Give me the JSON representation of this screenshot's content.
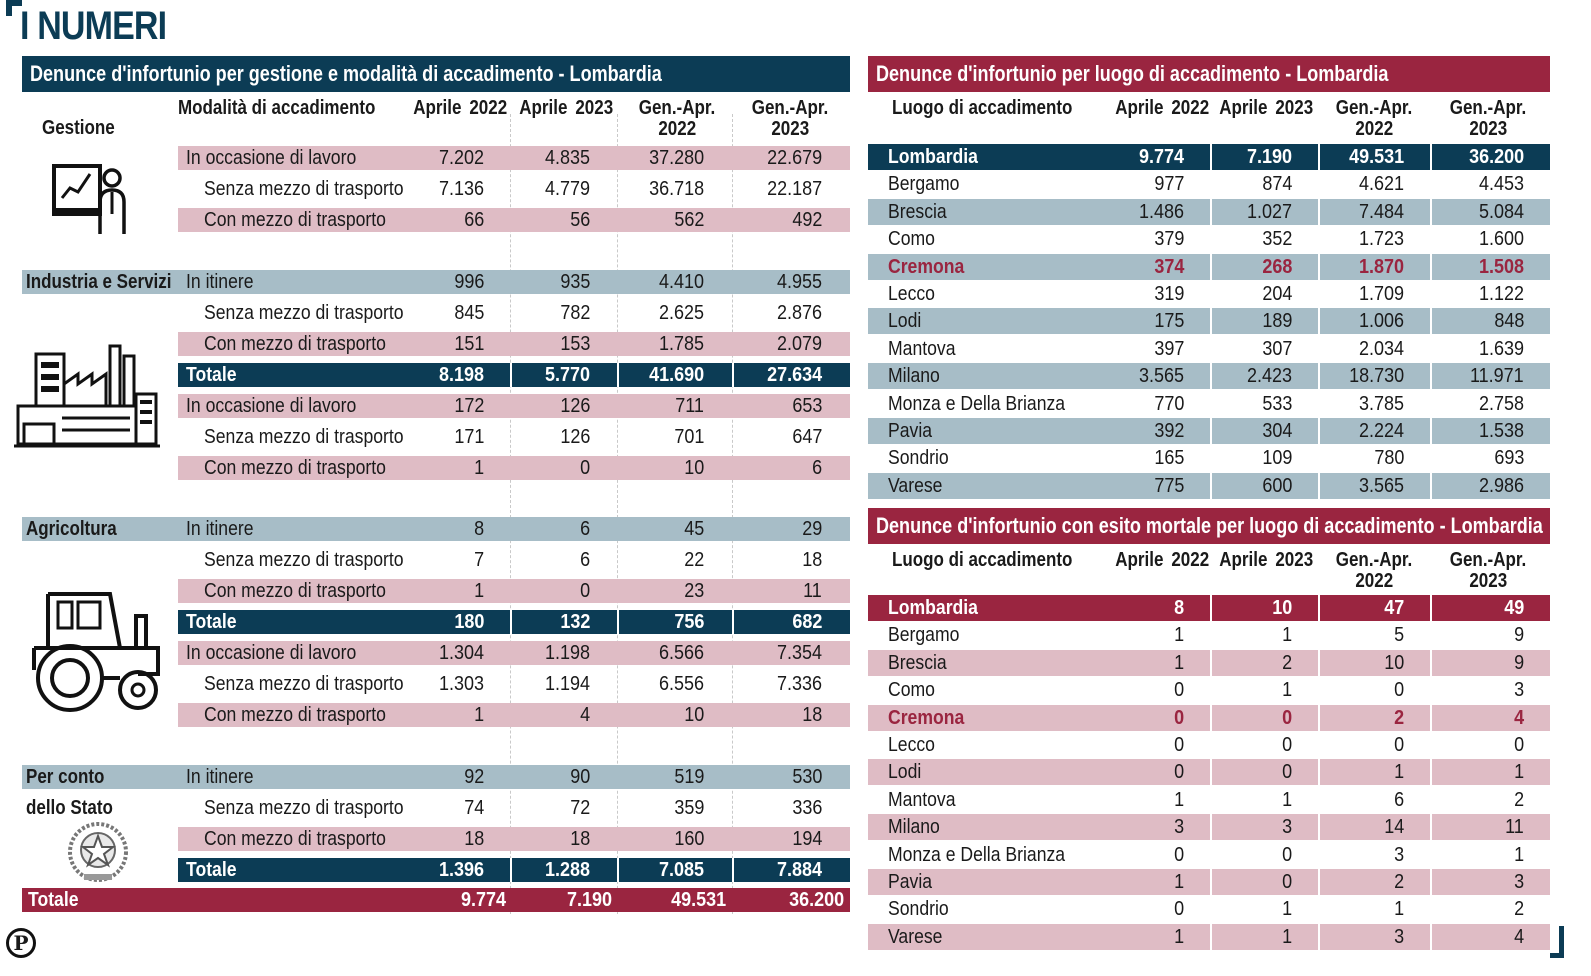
{
  "page_title": "I NUMERI",
  "logo_letter": "P",
  "chart_data": [
    {
      "type": "table",
      "title": "Denunce d'infortunio per gestione e modalità di accadimento - Lombardia",
      "header_gestione": "Gestione",
      "header_modalita": "Modalità di accadimento",
      "columns": [
        {
          "l1": "Aprile",
          "l2": "2022"
        },
        {
          "l1": "Aprile",
          "l2": "2023"
        },
        {
          "l1": "Gen.-Apr.",
          "l2": "2022"
        },
        {
          "l1": "Gen.-Apr.",
          "l2": "2023"
        }
      ],
      "groups": [
        {
          "name": "Gestione",
          "name2": "",
          "icon": "manager-chart-icon"
        },
        {
          "name": "Industria e Servizi",
          "name2": "",
          "icon": "factory-icon"
        },
        {
          "name": "Agricoltura",
          "name2": "",
          "icon": "tractor-icon"
        },
        {
          "name": "Per conto",
          "name2": "dello Stato",
          "icon": "italian-emblem-icon"
        }
      ],
      "rows": [
        {
          "label": "In occasione di lavoro",
          "style": "pink",
          "sub": false,
          "values": [
            "7.202",
            "4.835",
            "37.280",
            "22.679"
          ]
        },
        {
          "label": "Senza mezzo di trasporto",
          "style": "none",
          "sub": true,
          "values": [
            "7.136",
            "4.779",
            "36.718",
            "22.187"
          ]
        },
        {
          "label": "Con mezzo di trasporto",
          "style": "pink",
          "sub": true,
          "values": [
            "66",
            "56",
            "562",
            "492"
          ]
        },
        {
          "label": "In itinere",
          "style": "grey",
          "sub": false,
          "values": [
            "996",
            "935",
            "4.410",
            "4.955"
          ]
        },
        {
          "label": "Senza mezzo di trasporto",
          "style": "none",
          "sub": true,
          "values": [
            "845",
            "782",
            "2.625",
            "2.876"
          ]
        },
        {
          "label": "Con mezzo di trasporto",
          "style": "pink",
          "sub": true,
          "values": [
            "151",
            "153",
            "1.785",
            "2.079"
          ]
        },
        {
          "label": "Totale",
          "style": "navy",
          "sub": false,
          "values": [
            "8.198",
            "5.770",
            "41.690",
            "27.634"
          ]
        },
        {
          "label": "In occasione di lavoro",
          "style": "pink",
          "sub": false,
          "values": [
            "172",
            "126",
            "711",
            "653"
          ]
        },
        {
          "label": "Senza mezzo di trasporto",
          "style": "none",
          "sub": true,
          "values": [
            "171",
            "126",
            "701",
            "647"
          ]
        },
        {
          "label": "Con mezzo di trasporto",
          "style": "pink",
          "sub": true,
          "values": [
            "1",
            "0",
            "10",
            "6"
          ]
        },
        {
          "label": "In itinere",
          "style": "grey",
          "sub": false,
          "values": [
            "8",
            "6",
            "45",
            "29"
          ]
        },
        {
          "label": "Senza mezzo di trasporto",
          "style": "none",
          "sub": true,
          "values": [
            "7",
            "6",
            "22",
            "18"
          ]
        },
        {
          "label": "Con mezzo di trasporto",
          "style": "pink",
          "sub": true,
          "values": [
            "1",
            "0",
            "23",
            "11"
          ]
        },
        {
          "label": "Totale",
          "style": "navy",
          "sub": false,
          "values": [
            "180",
            "132",
            "756",
            "682"
          ]
        },
        {
          "label": "In occasione di lavoro",
          "style": "pink",
          "sub": false,
          "values": [
            "1.304",
            "1.198",
            "6.566",
            "7.354"
          ]
        },
        {
          "label": "Senza mezzo di trasporto",
          "style": "none",
          "sub": true,
          "values": [
            "1.303",
            "1.194",
            "6.556",
            "7.336"
          ]
        },
        {
          "label": "Con mezzo di trasporto",
          "style": "pink",
          "sub": true,
          "values": [
            "1",
            "4",
            "10",
            "18"
          ]
        },
        {
          "label": "In itinere",
          "style": "grey",
          "sub": false,
          "values": [
            "92",
            "90",
            "519",
            "530"
          ]
        },
        {
          "label": "Senza mezzo di trasporto",
          "style": "none",
          "sub": true,
          "values": [
            "74",
            "72",
            "359",
            "336"
          ]
        },
        {
          "label": "Con mezzo di trasporto",
          "style": "pink",
          "sub": true,
          "values": [
            "18",
            "18",
            "160",
            "194"
          ]
        },
        {
          "label": "Totale",
          "style": "navy",
          "sub": false,
          "values": [
            "1.396",
            "1.288",
            "7.085",
            "7.884"
          ]
        }
      ],
      "total": {
        "label": "Totale",
        "values": [
          "9.774",
          "7.190",
          "49.531",
          "36.200"
        ]
      }
    },
    {
      "type": "table",
      "title": "Denunce d'infortunio per luogo di accadimento - Lombardia",
      "header_luogo": "Luogo di accadimento",
      "columns": [
        {
          "l1": "Aprile",
          "l2": "2022"
        },
        {
          "l1": "Aprile",
          "l2": "2023"
        },
        {
          "l1": "Gen.-Apr.",
          "l2": "2022"
        },
        {
          "l1": "Gen.-Apr.",
          "l2": "2023"
        }
      ],
      "rows": [
        {
          "label": "Lombardia",
          "style": "head",
          "values": [
            "9.774",
            "7.190",
            "49.531",
            "36.200"
          ]
        },
        {
          "label": "Bergamo",
          "style": "none",
          "values": [
            "977",
            "874",
            "4.621",
            "4.453"
          ]
        },
        {
          "label": "Brescia",
          "style": "alt",
          "values": [
            "1.486",
            "1.027",
            "7.484",
            "5.084"
          ]
        },
        {
          "label": "Como",
          "style": "none",
          "values": [
            "379",
            "352",
            "1.723",
            "1.600"
          ]
        },
        {
          "label": "Cremona",
          "style": "alt-hl",
          "values": [
            "374",
            "268",
            "1.870",
            "1.508"
          ]
        },
        {
          "label": "Lecco",
          "style": "none",
          "values": [
            "319",
            "204",
            "1.709",
            "1.122"
          ]
        },
        {
          "label": "Lodi",
          "style": "alt",
          "values": [
            "175",
            "189",
            "1.006",
            "848"
          ]
        },
        {
          "label": "Mantova",
          "style": "none",
          "values": [
            "397",
            "307",
            "2.034",
            "1.639"
          ]
        },
        {
          "label": "Milano",
          "style": "alt",
          "values": [
            "3.565",
            "2.423",
            "18.730",
            "11.971"
          ]
        },
        {
          "label": "Monza e Della Brianza",
          "style": "none",
          "values": [
            "770",
            "533",
            "3.785",
            "2.758"
          ]
        },
        {
          "label": "Pavia",
          "style": "alt",
          "values": [
            "392",
            "304",
            "2.224",
            "1.538"
          ]
        },
        {
          "label": "Sondrio",
          "style": "none",
          "values": [
            "165",
            "109",
            "780",
            "693"
          ]
        },
        {
          "label": "Varese",
          "style": "alt",
          "values": [
            "775",
            "600",
            "3.565",
            "2.986"
          ]
        }
      ]
    },
    {
      "type": "table",
      "title": "Denunce d'infortunio con esito mortale per luogo di accadimento - Lombardia",
      "header_luogo": "Luogo di accadimento",
      "columns": [
        {
          "l1": "Aprile",
          "l2": "2022"
        },
        {
          "l1": "Aprile",
          "l2": "2023"
        },
        {
          "l1": "Gen.-Apr.",
          "l2": "2022"
        },
        {
          "l1": "Gen.-Apr.",
          "l2": "2023"
        }
      ],
      "rows": [
        {
          "label": "Lombardia",
          "style": "head",
          "values": [
            "8",
            "10",
            "47",
            "49"
          ]
        },
        {
          "label": "Bergamo",
          "style": "none",
          "values": [
            "1",
            "1",
            "5",
            "9"
          ]
        },
        {
          "label": "Brescia",
          "style": "alt",
          "values": [
            "1",
            "2",
            "10",
            "9"
          ]
        },
        {
          "label": "Como",
          "style": "none",
          "values": [
            "0",
            "1",
            "0",
            "3"
          ]
        },
        {
          "label": "Cremona",
          "style": "alt-hl",
          "values": [
            "0",
            "0",
            "2",
            "4"
          ]
        },
        {
          "label": "Lecco",
          "style": "none",
          "values": [
            "0",
            "0",
            "0",
            "0"
          ]
        },
        {
          "label": "Lodi",
          "style": "alt",
          "values": [
            "0",
            "0",
            "1",
            "1"
          ]
        },
        {
          "label": "Mantova",
          "style": "none",
          "values": [
            "1",
            "1",
            "6",
            "2"
          ]
        },
        {
          "label": "Milano",
          "style": "alt",
          "values": [
            "3",
            "3",
            "14",
            "11"
          ]
        },
        {
          "label": "Monza e Della Brianza",
          "style": "none",
          "values": [
            "0",
            "0",
            "3",
            "1"
          ]
        },
        {
          "label": "Pavia",
          "style": "alt",
          "values": [
            "1",
            "0",
            "2",
            "3"
          ]
        },
        {
          "label": "Sondrio",
          "style": "none",
          "values": [
            "0",
            "1",
            "1",
            "2"
          ]
        },
        {
          "label": "Varese",
          "style": "alt",
          "values": [
            "1",
            "1",
            "3",
            "4"
          ]
        }
      ]
    }
  ],
  "colors": {
    "navy": "#0c3c55",
    "wine": "#9a2540",
    "pink": "#dfbcc5",
    "grey": "#a7bdc7"
  }
}
